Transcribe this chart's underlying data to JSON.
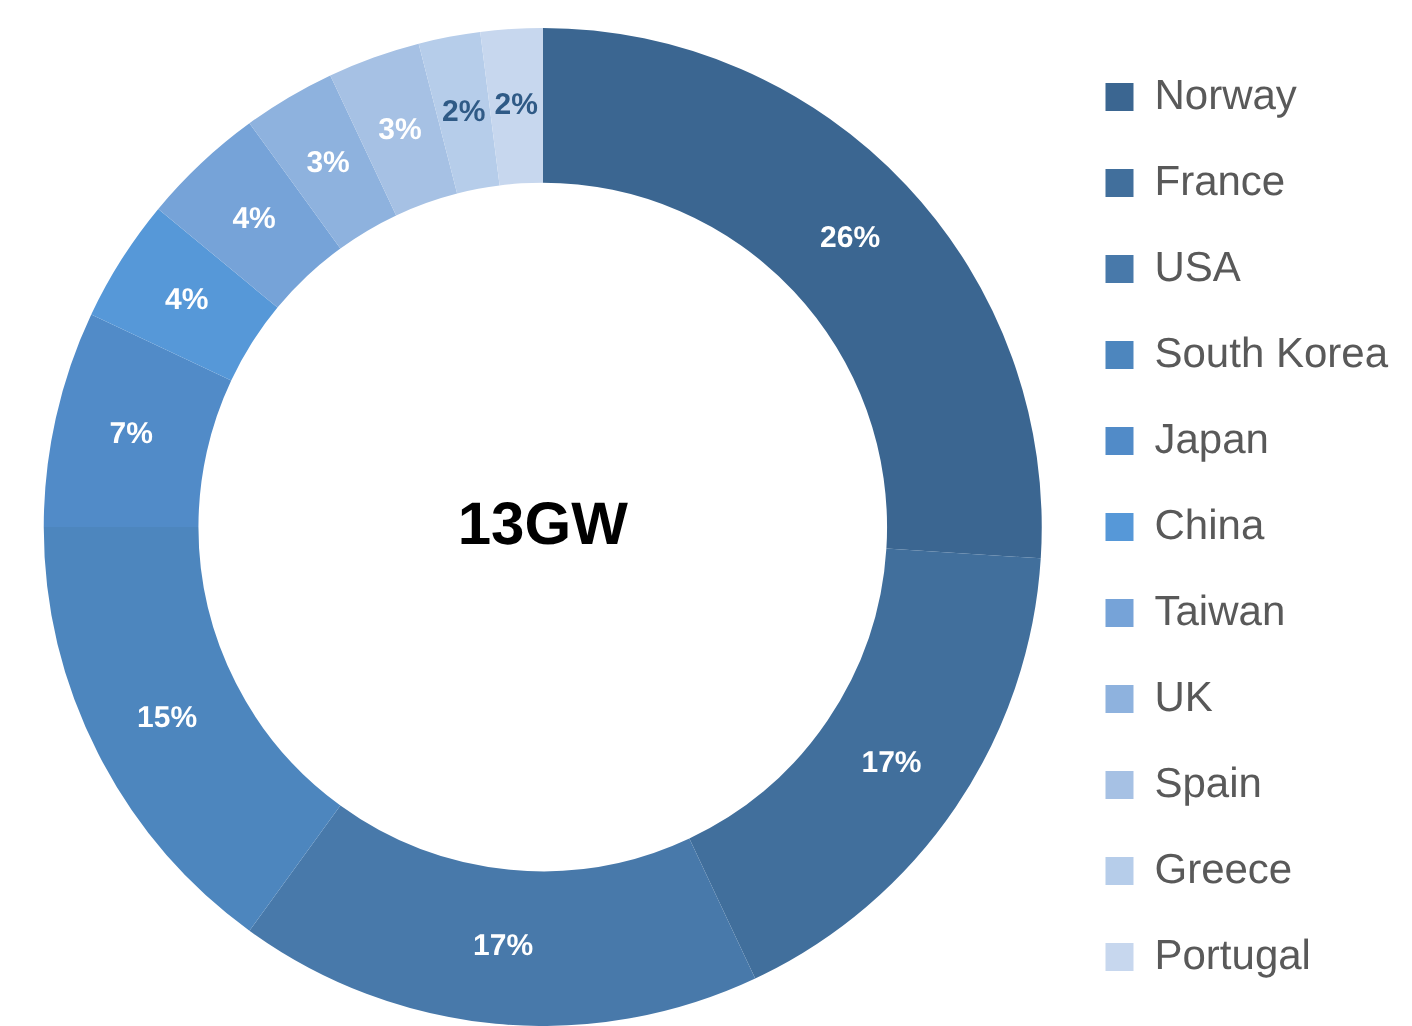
{
  "chart_data": {
    "type": "donut",
    "categories": [
      "Norway",
      "France",
      "USA",
      "South Korea",
      "Japan",
      "China",
      "Taiwan",
      "UK",
      "Spain",
      "Greece",
      "Portugal"
    ],
    "values": [
      26,
      17,
      17,
      15,
      7,
      4,
      4,
      3,
      3,
      2,
      2
    ],
    "colors": [
      "#3b6691",
      "#416f9c",
      "#4879aa",
      "#4d86be",
      "#518bc8",
      "#5698d8",
      "#76a3d8",
      "#8eb2de",
      "#a6c1e4",
      "#b6cdea",
      "#c7d7ee"
    ],
    "value_labels": [
      "26%",
      "17%",
      "17%",
      "15%",
      "7%",
      "4%",
      "4%",
      "3%",
      "3%",
      "2%",
      "2%"
    ],
    "annotations": [
      "13GW"
    ],
    "legend": "right"
  }
}
